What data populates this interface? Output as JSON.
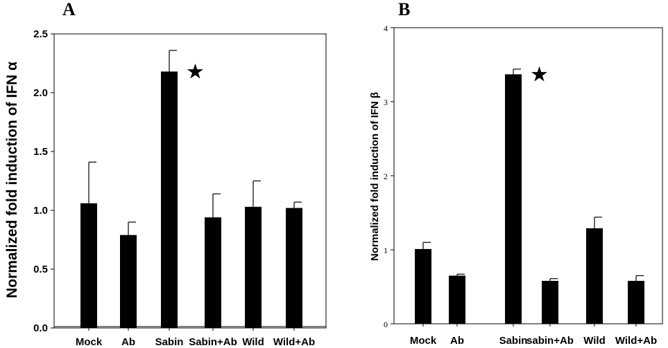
{
  "chart_data": [
    {
      "panel": "A",
      "type": "bar",
      "ylabel": "Normalized fold induction of IFN α",
      "ylim": [
        0,
        2.5
      ],
      "yticks": [
        "0.0",
        "0.5",
        "1.0",
        "1.5",
        "2.0",
        "2.5"
      ],
      "categories": [
        "Mock",
        "Ab",
        "Sabin",
        "Sabin+Ab",
        "Wild",
        "Wild+Ab"
      ],
      "values": [
        1.06,
        0.79,
        2.18,
        0.94,
        1.03,
        1.02
      ],
      "errors": [
        0.35,
        0.11,
        0.18,
        0.2,
        0.22,
        0.05
      ],
      "annotation": "★",
      "annotation_category": "Sabin",
      "bar_color": "#000000"
    },
    {
      "panel": "B",
      "type": "bar",
      "ylabel": "Normalized fold induction of IFN β",
      "ylim": [
        0,
        4
      ],
      "yticks": [
        "0",
        "1",
        "2",
        "3",
        "4"
      ],
      "categories": [
        "Mock",
        "Ab",
        "Sabin",
        "sabin+Ab",
        "Wild",
        "Wild+Ab"
      ],
      "values": [
        1.01,
        0.65,
        3.37,
        0.58,
        1.29,
        0.58
      ],
      "errors": [
        0.09,
        0.02,
        0.07,
        0.03,
        0.15,
        0.07
      ],
      "annotation": "★",
      "annotation_category": "Sabin",
      "bar_color": "#000000"
    }
  ]
}
